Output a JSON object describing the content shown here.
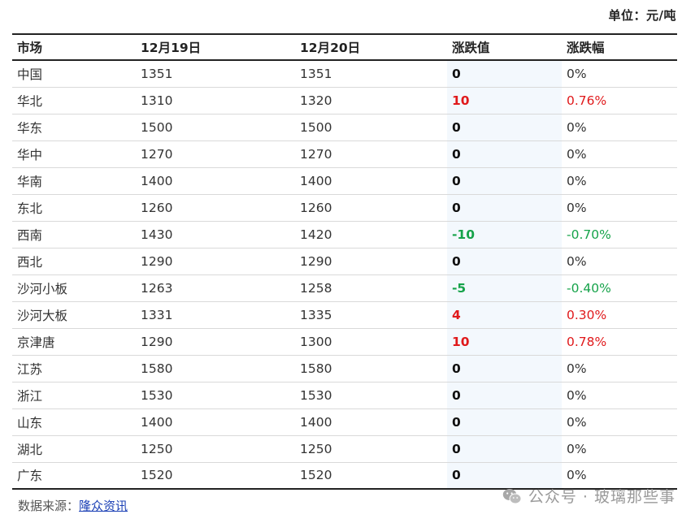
{
  "header": {
    "unit": "单位：元/吨"
  },
  "table": {
    "columns": [
      "市场",
      "12月19日",
      "12月20日",
      "涨跌值",
      "涨跌幅"
    ],
    "rows": [
      {
        "market": "中国",
        "d19": "1351",
        "d20": "1351",
        "change": "0",
        "pct": "0%",
        "trend": "flat"
      },
      {
        "market": "华北",
        "d19": "1310",
        "d20": "1320",
        "change": "10",
        "pct": "0.76%",
        "trend": "up"
      },
      {
        "market": "华东",
        "d19": "1500",
        "d20": "1500",
        "change": "0",
        "pct": "0%",
        "trend": "flat"
      },
      {
        "market": "华中",
        "d19": "1270",
        "d20": "1270",
        "change": "0",
        "pct": "0%",
        "trend": "flat"
      },
      {
        "market": "华南",
        "d19": "1400",
        "d20": "1400",
        "change": "0",
        "pct": "0%",
        "trend": "flat"
      },
      {
        "market": "东北",
        "d19": "1260",
        "d20": "1260",
        "change": "0",
        "pct": "0%",
        "trend": "flat"
      },
      {
        "market": "西南",
        "d19": "1430",
        "d20": "1420",
        "change": "-10",
        "pct": "-0.70%",
        "trend": "down"
      },
      {
        "market": "西北",
        "d19": "1290",
        "d20": "1290",
        "change": "0",
        "pct": "0%",
        "trend": "flat"
      },
      {
        "market": "沙河小板",
        "d19": "1263",
        "d20": "1258",
        "change": "-5",
        "pct": "-0.40%",
        "trend": "down"
      },
      {
        "market": "沙河大板",
        "d19": "1331",
        "d20": "1335",
        "change": "4",
        "pct": "0.30%",
        "trend": "up"
      },
      {
        "market": "京津唐",
        "d19": "1290",
        "d20": "1300",
        "change": "10",
        "pct": "0.78%",
        "trend": "up"
      },
      {
        "market": "江苏",
        "d19": "1580",
        "d20": "1580",
        "change": "0",
        "pct": "0%",
        "trend": "flat"
      },
      {
        "market": "浙江",
        "d19": "1530",
        "d20": "1530",
        "change": "0",
        "pct": "0%",
        "trend": "flat"
      },
      {
        "market": "山东",
        "d19": "1400",
        "d20": "1400",
        "change": "0",
        "pct": "0%",
        "trend": "flat"
      },
      {
        "market": "湖北",
        "d19": "1250",
        "d20": "1250",
        "change": "0",
        "pct": "0%",
        "trend": "flat"
      },
      {
        "market": "广东",
        "d19": "1520",
        "d20": "1520",
        "change": "0",
        "pct": "0%",
        "trend": "flat"
      }
    ]
  },
  "colors": {
    "up": "#e0191b",
    "down": "#16a34a",
    "flat": "#111111",
    "pct_flat": "#333333"
  },
  "footer": {
    "source_label": "数据来源：",
    "source_link": "隆众资讯",
    "watermark_icon": "wechat-icon",
    "watermark": "公众号 · 玻璃那些事"
  }
}
